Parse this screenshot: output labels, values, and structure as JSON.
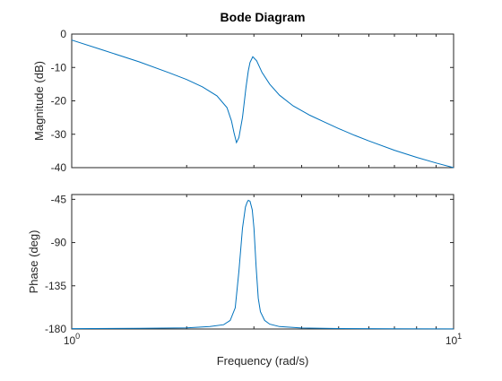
{
  "chart_data": {
    "type": "line",
    "title": "Bode Diagram",
    "xlabel": "Frequency (rad/s)",
    "xscale": "log",
    "xlim": [
      1,
      10
    ],
    "xtick_labels": [
      {
        "value": 1,
        "base": "10",
        "exp": "0"
      },
      {
        "value": 10,
        "base": "10",
        "exp": "1"
      }
    ],
    "line_color": "#0072BD",
    "panels": [
      {
        "name": "magnitude",
        "ylabel": "Magnitude (dB)",
        "ylim": [
          -40,
          0
        ],
        "yticks": [
          0,
          -10,
          -20,
          -30,
          -40
        ],
        "series": [
          {
            "x": [
              1.0,
              1.2,
              1.5,
              1.8,
              2.0,
              2.2,
              2.4,
              2.55,
              2.62,
              2.66,
              2.7,
              2.74,
              2.8,
              2.86,
              2.9,
              2.93,
              2.98,
              3.05,
              3.15,
              3.3,
              3.5,
              3.8,
              4.2,
              4.6,
              5.0,
              5.5,
              6.0,
              7.0,
              8.0,
              9.0,
              10.0
            ],
            "y": [
              -1.8,
              -4.7,
              -8.3,
              -11.6,
              -13.6,
              -15.8,
              -18.5,
              -22.0,
              -26.0,
              -29.5,
              -32.5,
              -31.0,
              -25.0,
              -16.0,
              -11.0,
              -8.5,
              -6.8,
              -8.0,
              -11.5,
              -15.0,
              -18.3,
              -21.5,
              -24.3,
              -26.4,
              -28.3,
              -30.3,
              -32.0,
              -34.8,
              -36.9,
              -38.6,
              -40.0
            ]
          }
        ]
      },
      {
        "name": "phase",
        "ylabel": "Phase (deg)",
        "ylim": [
          -180,
          -40
        ],
        "yticks": [
          -45,
          -90,
          -135,
          -180
        ],
        "series": [
          {
            "x": [
              1.0,
              1.5,
              2.0,
              2.3,
              2.5,
              2.6,
              2.68,
              2.74,
              2.8,
              2.85,
              2.88,
              2.9,
              2.93,
              2.97,
              3.0,
              3.04,
              3.08,
              3.12,
              3.2,
              3.3,
              3.5,
              4.0,
              5.0,
              7.0,
              10.0
            ],
            "y": [
              -179.6,
              -179.3,
              -178.8,
              -177.5,
              -175.5,
              -171.0,
              -158.0,
              -120.0,
              -75.0,
              -53.0,
              -48.0,
              -46.0,
              -47.0,
              -56.0,
              -75.0,
              -115.0,
              -148.0,
              -162.0,
              -171.0,
              -175.0,
              -177.5,
              -179.0,
              -179.5,
              -179.8,
              -179.9
            ]
          }
        ]
      }
    ]
  }
}
